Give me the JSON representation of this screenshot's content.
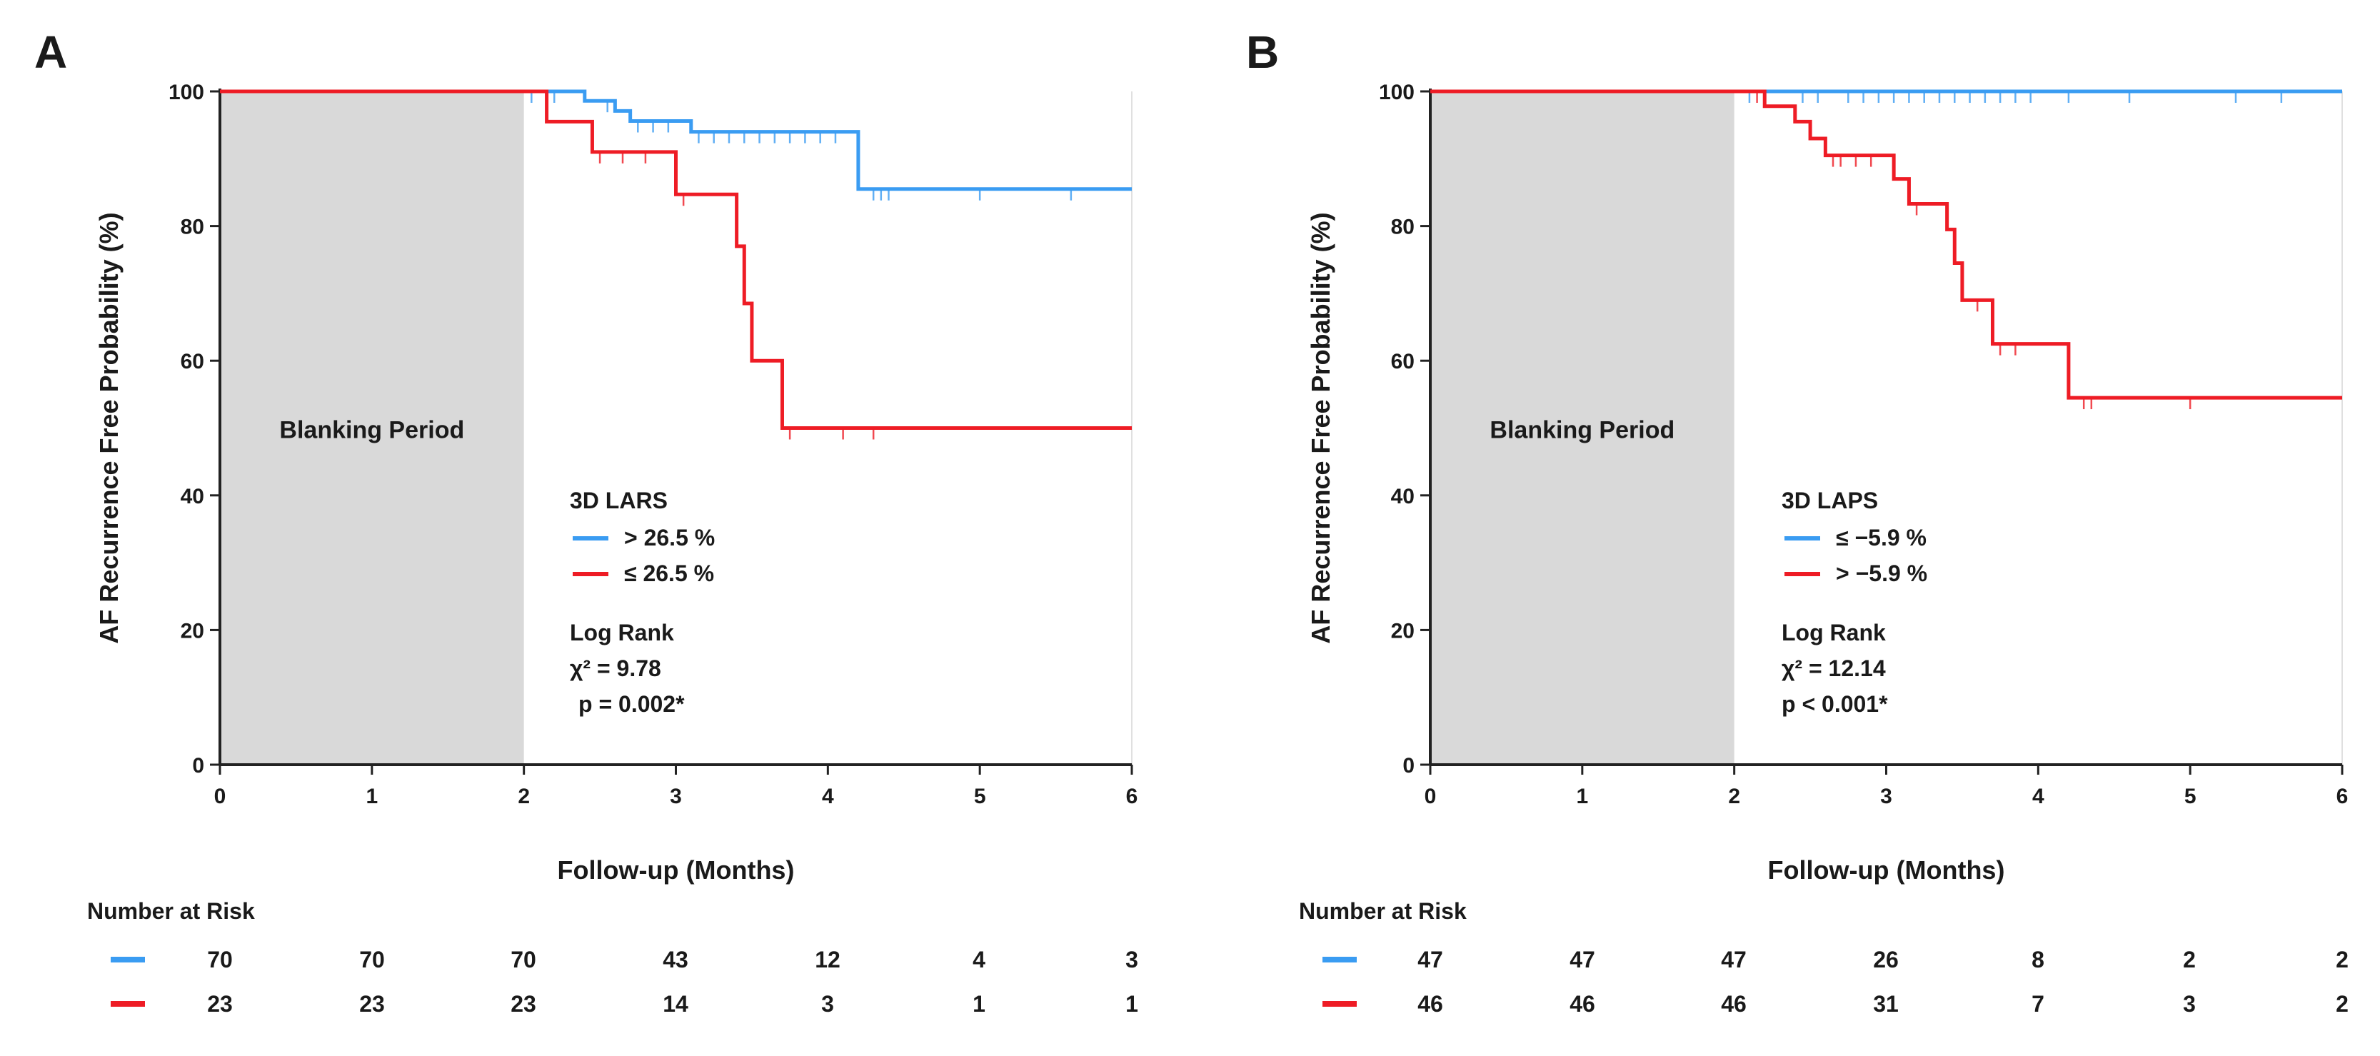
{
  "chart_data": [
    {
      "type": "line",
      "panel_label": "A",
      "xlabel": "Follow-up (Months)",
      "ylabel": "AF Recurrence Free Probability (%)",
      "xlim": [
        0,
        6
      ],
      "ylim": [
        0,
        100
      ],
      "x_ticks": [
        "0",
        "1",
        "2",
        "3",
        "4",
        "5",
        "6"
      ],
      "y_ticks": [
        "0",
        "20",
        "40",
        "60",
        "80",
        "100"
      ],
      "shaded_region": {
        "label": "Blanking Period",
        "x": [
          0,
          2
        ]
      },
      "legend_title": "3D LARS",
      "series": [
        {
          "name": "> 26.5 %",
          "color": "#3a9cf2",
          "steps": [
            [
              0,
              100
            ],
            [
              2.4,
              98.6
            ],
            [
              2.6,
              97.1
            ],
            [
              2.7,
              95.6
            ],
            [
              3.1,
              94.0
            ],
            [
              4.2,
              85.5
            ],
            [
              6,
              85.5
            ]
          ],
          "censor_x": [
            2.05,
            2.2,
            2.55,
            2.75,
            2.85,
            2.95,
            3.15,
            3.25,
            3.35,
            3.45,
            3.55,
            3.65,
            3.75,
            3.85,
            3.95,
            4.05,
            4.3,
            4.35,
            4.4,
            5.0,
            5.6
          ]
        },
        {
          "name": "≤ 26.5 %",
          "color": "#ee1c25",
          "steps": [
            [
              0,
              100
            ],
            [
              2.15,
              95.5
            ],
            [
              2.45,
              91.0
            ],
            [
              3.0,
              84.7
            ],
            [
              3.4,
              77.0
            ],
            [
              3.45,
              68.5
            ],
            [
              3.5,
              60.0
            ],
            [
              3.7,
              50.0
            ],
            [
              6,
              50.0
            ]
          ],
          "censor_x": [
            2.5,
            2.65,
            2.8,
            3.05,
            3.75,
            4.1,
            4.3
          ]
        }
      ],
      "stats": {
        "title": "Log Rank",
        "chi2": "χ² = 9.78",
        "p": "p = 0.002*"
      },
      "risk_table": {
        "title": "Number at Risk",
        "rows": [
          {
            "color": "#3a9cf2",
            "values": [
              "70",
              "70",
              "70",
              "43",
              "12",
              "4",
              "3"
            ]
          },
          {
            "color": "#ee1c25",
            "values": [
              "23",
              "23",
              "23",
              "14",
              "3",
              "1",
              "1"
            ]
          }
        ]
      }
    },
    {
      "type": "line",
      "panel_label": "B",
      "xlabel": "Follow-up (Months)",
      "ylabel": "AF Recurrence Free Probability (%)",
      "xlim": [
        0,
        6
      ],
      "ylim": [
        0,
        100
      ],
      "x_ticks": [
        "0",
        "1",
        "2",
        "3",
        "4",
        "5",
        "6"
      ],
      "y_ticks": [
        "0",
        "20",
        "40",
        "60",
        "80",
        "100"
      ],
      "shaded_region": {
        "label": "Blanking Period",
        "x": [
          0,
          2
        ]
      },
      "legend_title": "3D LAPS",
      "series": [
        {
          "name": "≤ −5.9 %",
          "color": "#3a9cf2",
          "steps": [
            [
              0,
              100
            ],
            [
              6,
              100
            ]
          ],
          "censor_x": [
            2.1,
            2.2,
            2.45,
            2.55,
            2.75,
            2.85,
            2.95,
            3.05,
            3.15,
            3.25,
            3.35,
            3.45,
            3.55,
            3.65,
            3.75,
            3.85,
            3.95,
            4.2,
            4.6,
            5.3,
            5.6
          ]
        },
        {
          "name": "> −5.9 %",
          "color": "#ee1c25",
          "steps": [
            [
              0,
              100
            ],
            [
              2.2,
              97.8
            ],
            [
              2.4,
              95.5
            ],
            [
              2.5,
              93.0
            ],
            [
              2.6,
              90.5
            ],
            [
              3.05,
              87.0
            ],
            [
              3.15,
              83.3
            ],
            [
              3.4,
              79.5
            ],
            [
              3.45,
              74.5
            ],
            [
              3.5,
              69.0
            ],
            [
              3.7,
              62.5
            ],
            [
              4.2,
              54.5
            ],
            [
              6,
              54.5
            ]
          ],
          "censor_x": [
            2.15,
            2.65,
            2.7,
            2.8,
            2.9,
            3.2,
            3.6,
            3.75,
            3.85,
            4.3,
            4.35,
            5.0
          ]
        }
      ],
      "stats": {
        "title": "Log Rank",
        "chi2": "χ² = 12.14",
        "p": "p < 0.001*"
      },
      "risk_table": {
        "title": "Number at Risk",
        "rows": [
          {
            "color": "#3a9cf2",
            "values": [
              "47",
              "47",
              "47",
              "26",
              "8",
              "2",
              "2"
            ]
          },
          {
            "color": "#ee1c25",
            "values": [
              "46",
              "46",
              "46",
              "31",
              "7",
              "3",
              "2"
            ]
          }
        ]
      }
    }
  ]
}
